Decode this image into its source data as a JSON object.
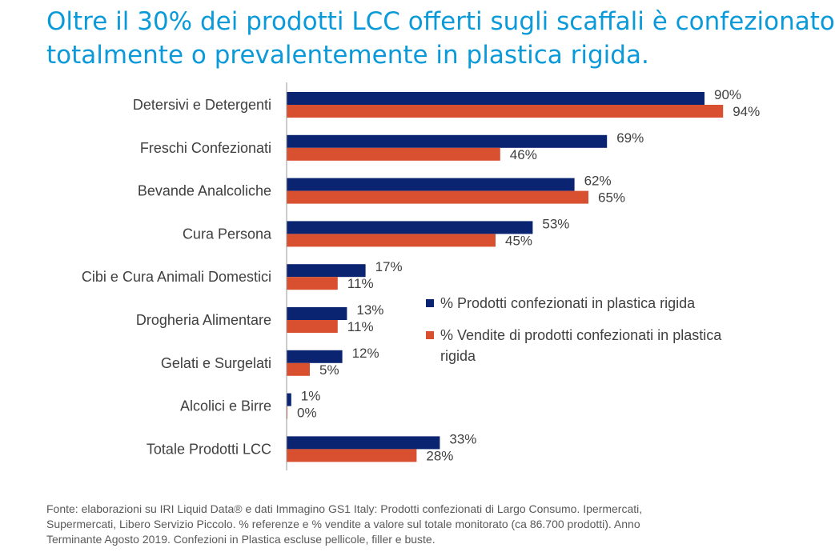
{
  "title": {
    "line1": "Oltre il 30% dei prodotti LCC offerti sugli scaffali è confezionato",
    "line2": "totalmente o prevalentemente in plastica rigida."
  },
  "colors": {
    "series1": "#0b2471",
    "series2": "#d8502f",
    "axis": "#9a9a9a"
  },
  "chart_data": {
    "type": "bar",
    "orientation": "horizontal",
    "categories": [
      "Detersivi e Detergenti",
      "Freschi Confezionati",
      "Bevande Analcoliche",
      "Cura Persona",
      "Cibi e Cura Animali Domestici",
      "Drogheria Alimentare",
      "Gelati e Surgelati",
      "Alcolici e Birre",
      "Totale Prodotti LCC"
    ],
    "series": [
      {
        "name": "% Prodotti confezionati in plastica rigida",
        "values": [
          90,
          69,
          62,
          53,
          17,
          13,
          12,
          1,
          33
        ],
        "labels": [
          "90%",
          "69%",
          "62%",
          "53%",
          "17%",
          "13%",
          "12%",
          "1%",
          "33%"
        ]
      },
      {
        "name": "% Vendite di prodotti confezionati in plastica rigida",
        "values": [
          94,
          46,
          65,
          45,
          11,
          11,
          5,
          0,
          28
        ],
        "labels": [
          "94%",
          "46%",
          "65%",
          "45%",
          "11%",
          "11%",
          "5%",
          "0%",
          "28%"
        ]
      }
    ],
    "xlim": [
      0,
      100
    ],
    "grid": false,
    "legend_position": "right"
  },
  "legend": {
    "item1_line1": "% Prodotti confezionati in plastica rigida",
    "item2_line1": "% Vendite di prodotti confezionati in plastica",
    "item2_line2": "rigida"
  },
  "source": {
    "line1": "Fonte: elaborazioni su IRI Liquid Data® e dati Immagino GS1 Italy: Prodotti confezionati di Largo Consumo. Ipermercati,",
    "line2": "Supermercati, Libero Servizio Piccolo. % referenze e % vendite a valore sul totale monitorato (ca 86.700 prodotti). Anno",
    "line3": "Terminante Agosto 2019. Confezioni in Plastica escluse pellicole, filler e buste."
  }
}
